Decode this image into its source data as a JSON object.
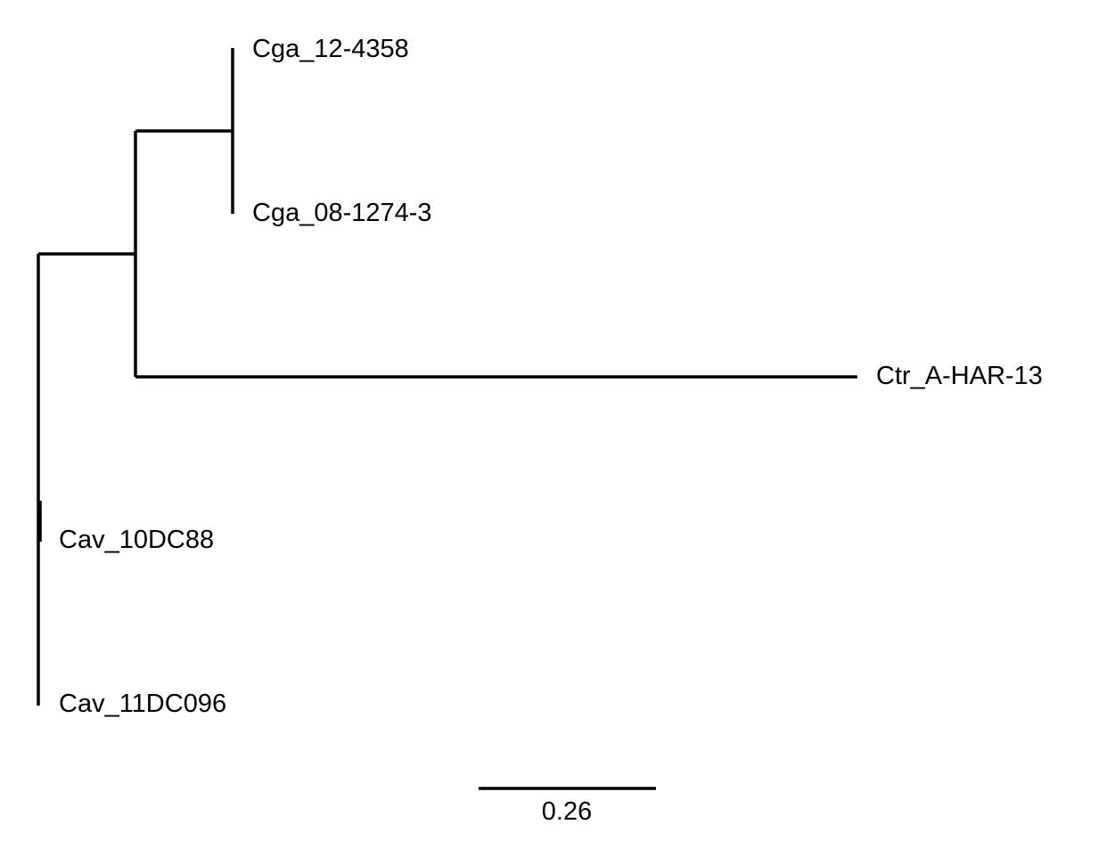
{
  "tree": {
    "taxa": [
      {
        "id": "cga_12",
        "label": "Cga_12-4358"
      },
      {
        "id": "cga_08",
        "label": "Cga_08-1274-3"
      },
      {
        "id": "ctr",
        "label": "Ctr_A-HAR-13"
      },
      {
        "id": "cav_10",
        "label": "Cav_10DC88"
      },
      {
        "id": "cav_11",
        "label": "Cav_11DC096"
      }
    ],
    "scale_bar": {
      "label": "0.26",
      "length": 0.26
    },
    "line_color": "#000000"
  }
}
